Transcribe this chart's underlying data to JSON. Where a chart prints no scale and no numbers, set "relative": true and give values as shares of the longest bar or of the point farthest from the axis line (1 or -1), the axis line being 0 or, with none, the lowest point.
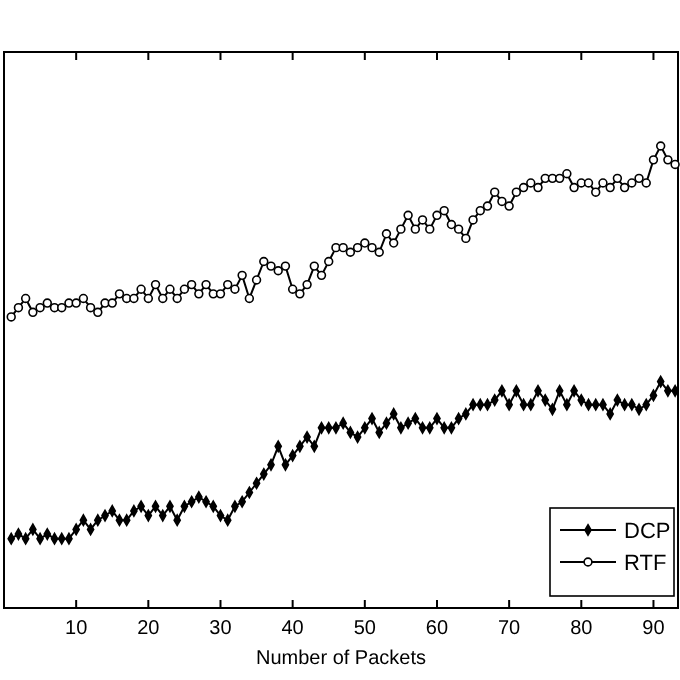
{
  "chart_data": {
    "type": "line",
    "relative": true,
    "xlabel": "Number of Packets",
    "xlim": [
      0,
      93.4
    ],
    "xticks": [
      10,
      20,
      30,
      40,
      50,
      60,
      70,
      80,
      90
    ],
    "x": [
      1,
      2,
      3,
      4,
      5,
      6,
      7,
      8,
      9,
      10,
      11,
      12,
      13,
      14,
      15,
      16,
      17,
      18,
      19,
      20,
      21,
      22,
      23,
      24,
      25,
      26,
      27,
      28,
      29,
      30,
      31,
      32,
      33,
      34,
      35,
      36,
      37,
      38,
      39,
      40,
      41,
      42,
      43,
      44,
      45,
      46,
      47,
      48,
      49,
      50,
      51,
      52,
      53,
      54,
      55,
      56,
      57,
      58,
      59,
      60,
      61,
      62,
      63,
      64,
      65,
      66,
      67,
      68,
      69,
      70,
      71,
      72,
      73,
      74,
      75,
      76,
      77,
      78,
      79,
      80,
      81,
      82,
      83,
      84,
      85,
      86,
      87,
      88,
      89,
      90,
      91,
      92,
      93
    ],
    "legend": "bottom right",
    "grid": false,
    "series": [
      {
        "name": "DCP",
        "color": "#000000",
        "marker": "diamond",
        "values": [
          0.15,
          0.16,
          0.15,
          0.17,
          0.15,
          0.16,
          0.15,
          0.15,
          0.15,
          0.17,
          0.19,
          0.17,
          0.19,
          0.2,
          0.21,
          0.19,
          0.19,
          0.21,
          0.22,
          0.2,
          0.22,
          0.2,
          0.22,
          0.19,
          0.22,
          0.23,
          0.24,
          0.23,
          0.22,
          0.2,
          0.19,
          0.22,
          0.23,
          0.25,
          0.27,
          0.29,
          0.31,
          0.35,
          0.31,
          0.33,
          0.35,
          0.37,
          0.35,
          0.39,
          0.39,
          0.39,
          0.4,
          0.38,
          0.37,
          0.39,
          0.41,
          0.38,
          0.4,
          0.42,
          0.39,
          0.4,
          0.41,
          0.39,
          0.39,
          0.41,
          0.39,
          0.39,
          0.41,
          0.42,
          0.44,
          0.44,
          0.44,
          0.45,
          0.47,
          0.44,
          0.47,
          0.44,
          0.44,
          0.47,
          0.45,
          0.43,
          0.47,
          0.44,
          0.47,
          0.45,
          0.44,
          0.44,
          0.44,
          0.42,
          0.45,
          0.44,
          0.44,
          0.43,
          0.44,
          0.46,
          0.49,
          0.47,
          0.47
        ]
      },
      {
        "name": "RTF",
        "color": "#000000",
        "marker": "circle",
        "values": [
          0.63,
          0.65,
          0.67,
          0.64,
          0.65,
          0.66,
          0.65,
          0.65,
          0.66,
          0.66,
          0.67,
          0.65,
          0.64,
          0.66,
          0.66,
          0.68,
          0.67,
          0.67,
          0.69,
          0.67,
          0.7,
          0.67,
          0.69,
          0.67,
          0.69,
          0.7,
          0.68,
          0.7,
          0.68,
          0.68,
          0.7,
          0.69,
          0.72,
          0.67,
          0.71,
          0.75,
          0.74,
          0.73,
          0.74,
          0.69,
          0.68,
          0.7,
          0.74,
          0.72,
          0.75,
          0.78,
          0.78,
          0.77,
          0.78,
          0.79,
          0.78,
          0.77,
          0.81,
          0.79,
          0.82,
          0.85,
          0.82,
          0.84,
          0.82,
          0.85,
          0.86,
          0.83,
          0.82,
          0.8,
          0.84,
          0.86,
          0.87,
          0.9,
          0.88,
          0.87,
          0.9,
          0.91,
          0.92,
          0.91,
          0.93,
          0.93,
          0.93,
          0.94,
          0.91,
          0.92,
          0.92,
          0.9,
          0.92,
          0.91,
          0.93,
          0.91,
          0.92,
          0.93,
          0.92,
          0.97,
          1,
          0.97,
          0.96
        ]
      }
    ]
  }
}
